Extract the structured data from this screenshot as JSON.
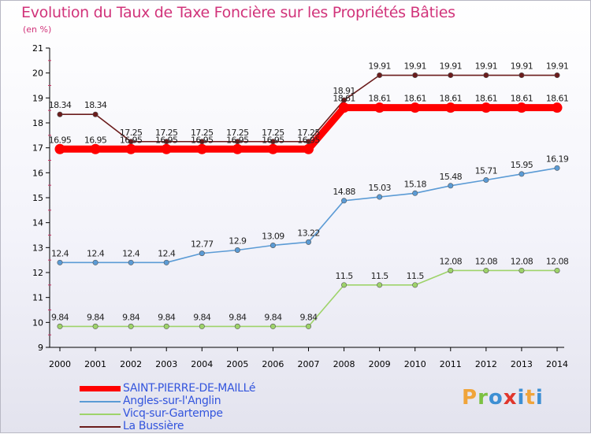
{
  "chart_data": {
    "type": "line",
    "title": "Evolution du Taux de Taxe Foncière sur les Propriétés Bâties",
    "ylabel": "(en %)",
    "xlabel": "",
    "ylim": [
      9,
      21
    ],
    "yticks": [
      9,
      10,
      11,
      12,
      13,
      14,
      15,
      16,
      17,
      18,
      19,
      20,
      21
    ],
    "x": [
      "2000",
      "2001",
      "2002",
      "2003",
      "2004",
      "2005",
      "2006",
      "2007",
      "2008",
      "2009",
      "2010",
      "2011",
      "2012",
      "2013",
      "2014"
    ],
    "legend_position": "bottom-left",
    "series": [
      {
        "name": "SAINT-PIERRE-DE-MAILLé",
        "color": "#ff0000",
        "style": "thick",
        "values": [
          16.95,
          16.95,
          16.95,
          16.95,
          16.95,
          16.95,
          16.95,
          16.95,
          18.61,
          18.61,
          18.61,
          18.61,
          18.61,
          18.61,
          18.61
        ],
        "labels": [
          "16.95",
          "16.95",
          "16.95",
          "16.95",
          "16.95",
          "16.95",
          "16.95",
          "16.95",
          "18.61",
          "18.61",
          "18.61",
          "18.61",
          "18.61",
          "18.61",
          "18.61"
        ]
      },
      {
        "name": "Angles-sur-l'Anglin",
        "color": "#5b9bd5",
        "style": "thin",
        "values": [
          12.4,
          12.4,
          12.4,
          12.4,
          12.77,
          12.9,
          13.09,
          13.22,
          14.88,
          15.03,
          15.18,
          15.48,
          15.71,
          15.95,
          16.19
        ],
        "labels": [
          "12.4",
          "12.4",
          "12.4",
          "12.4",
          "12.77",
          "12.9",
          "13.09",
          "13.22",
          "14.88",
          "15.03",
          "15.18",
          "15.48",
          "15.71",
          "15.95",
          "16.19"
        ]
      },
      {
        "name": "Vicq-sur-Gartempe",
        "color": "#9ed36a",
        "style": "thin",
        "values": [
          9.84,
          9.84,
          9.84,
          9.84,
          9.84,
          9.84,
          9.84,
          9.84,
          11.5,
          11.5,
          11.5,
          12.08,
          12.08,
          12.08,
          12.08
        ],
        "labels": [
          "9.84",
          "9.84",
          "9.84",
          "9.84",
          "9.84",
          "9.84",
          "9.84",
          "9.84",
          "11.5",
          "11.5",
          "11.5",
          "12.08",
          "12.08",
          "12.08",
          "12.08"
        ]
      },
      {
        "name": "La Bussière",
        "color": "#6b1c1c",
        "style": "thin",
        "values": [
          18.34,
          18.34,
          17.25,
          17.25,
          17.25,
          17.25,
          17.25,
          17.25,
          18.91,
          19.91,
          19.91,
          19.91,
          19.91,
          19.91,
          19.91
        ],
        "labels": [
          "18.34",
          "18.34",
          "17.25",
          "17.25",
          "17.25",
          "17.25",
          "17.25",
          "17.25",
          "18.91",
          "19.91",
          "19.91",
          "19.91",
          "19.91",
          "19.91",
          "19.91"
        ]
      }
    ]
  },
  "legend_colors": {
    "text": "#3355dd",
    "axis": "#000000",
    "tick_marks": "#cc3366"
  },
  "logo": {
    "letters": [
      "P",
      "r",
      "o",
      "x",
      "i",
      "t",
      "i"
    ]
  }
}
